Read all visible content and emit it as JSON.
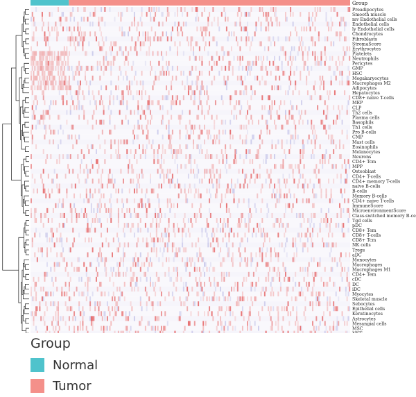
{
  "chart_data": {
    "type": "heatmap",
    "annotation_title": "Group",
    "groups": [
      {
        "name": "Normal",
        "color": "#4FC3CC"
      },
      {
        "name": "Tumor",
        "color": "#F4908A"
      }
    ],
    "group_split_fraction": 0.12,
    "rows": [
      "Preadipocytes",
      "Smooth muscle",
      "mv Endothelial cells",
      "Endothelial cells",
      "ly Endothelial cells",
      "Chondrocytes",
      "Fibroblasts",
      "StromaScore",
      "Erythrocytes",
      "Platelets",
      "Neutrophils",
      "Pericytes",
      "GMP",
      "HSC",
      "Megakaryocytes",
      "Macrophages M2",
      "Adipocytes",
      "Hepatocytes",
      "CD8+ naive T-cells",
      "MEP",
      "CLP",
      "Th2 cells",
      "Plasma cells",
      "Basophils",
      "Th1 cells",
      "Pro B-cells",
      "CMP",
      "Mast cells",
      "Eosinophils",
      "Melanocytes",
      "Neurons",
      "CD4+ Tcm",
      "MPP",
      "Osteoblast",
      "CD4+ T-cells",
      "CD4+ memory T-cells",
      "naive B-cells",
      "B-cells",
      "Memory B-cells",
      "CD4+ naive T-cells",
      "ImmuneScore",
      "MicroenvironmentScore",
      "Class-switched memory B-cells",
      "Tgd cells",
      "pDC",
      "CD8+ Tem",
      "CD8+ T-cells",
      "CD8+ Tcm",
      "NK cells",
      "Tregs",
      "aDC",
      "Monocytes",
      "Macrophages",
      "Macrophages M1",
      "CD4+ Tem",
      "cDC",
      "DC",
      "iDC",
      "Myocytes",
      "Skeletal muscle",
      "Sebocytes",
      "Epithelial cells",
      "Keratinocytes",
      "Astrocytes",
      "Mesangial cells",
      "MSC",
      "NKT"
    ],
    "color_scale": {
      "low": "#3b4cc0",
      "mid": "#ffffff",
      "high": "#d7191c"
    },
    "legend": {
      "title": "Group",
      "items": [
        "Normal",
        "Tumor"
      ],
      "placement": "bottom-left"
    },
    "dendrogram": "rows"
  },
  "legend": {
    "title": "Group",
    "normal_label": "Normal",
    "tumor_label": "Tumor",
    "normal_color": "#4FC3CC",
    "tumor_color": "#F4908A"
  }
}
